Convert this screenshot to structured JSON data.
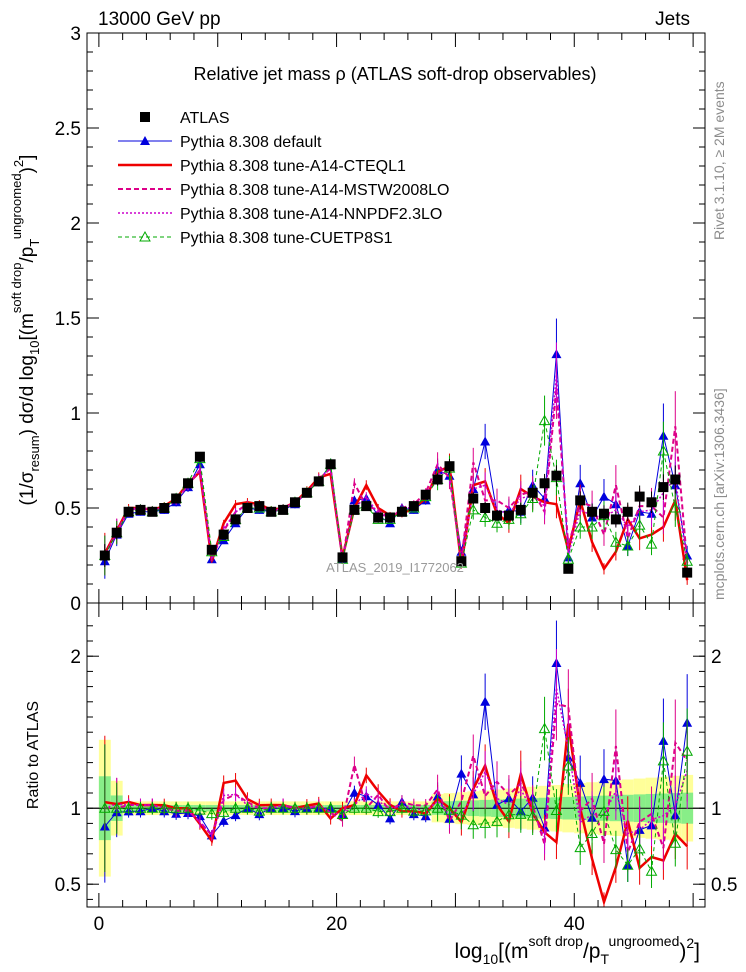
{
  "header": {
    "left": "13000 GeV pp",
    "right": "Jets"
  },
  "side_labels": {
    "rivet": "Rivet 3.1.10, ≥ 2M events",
    "mcplots": "mcplots.cern.ch [arXiv:1306.3436]"
  },
  "watermark": "ATLAS_2019_I1772062",
  "chart_data": [
    {
      "type": "line",
      "title": "Relative jet mass  ρ (ATLAS soft-drop observables)",
      "ylabel": "(1/σ_resum) dσ/d log10[(m^soft drop/p_T^ungroomed)^2]",
      "xlabel": "log10[(m^soft drop/p_T^ungroomed)^2]",
      "xlim": [
        -1,
        51
      ],
      "ylim": [
        0,
        3
      ],
      "yticks": [
        "0",
        "0.5",
        "1",
        "1.5",
        "2",
        "2.5",
        "3"
      ],
      "xticks": [
        "0",
        "20",
        "40"
      ],
      "legend": [
        "ATLAS",
        "Pythia 8.308 default",
        "Pythia 8.308 tune-A14-CTEQL1",
        "Pythia 8.308 tune-A14-MSTW2008LO",
        "Pythia 8.308 tune-A14-NNPDF2.3LO",
        "Pythia 8.308 tune-CUETP8S1"
      ],
      "x": [
        0.5,
        1.5,
        2.5,
        3.5,
        4.5,
        5.5,
        6.5,
        7.5,
        8.5,
        9.5,
        10.5,
        11.5,
        12.5,
        13.5,
        14.5,
        15.5,
        16.5,
        17.5,
        18.5,
        19.5,
        20.5,
        21.5,
        22.5,
        23.5,
        24.5,
        25.5,
        26.5,
        27.5,
        28.5,
        29.5,
        30.5,
        31.5,
        32.5,
        33.5,
        34.5,
        35.5,
        36.5,
        37.5,
        38.5,
        39.5,
        40.5,
        41.5,
        42.5,
        43.5,
        44.5,
        45.5,
        46.5,
        47.5,
        48.5,
        49.5
      ],
      "series": [
        {
          "name": "ATLAS",
          "color": "#000000",
          "values": [
            0.25,
            0.37,
            0.48,
            0.49,
            0.48,
            0.5,
            0.55,
            0.63,
            0.77,
            0.28,
            0.36,
            0.44,
            0.5,
            0.51,
            0.48,
            0.49,
            0.53,
            0.58,
            0.64,
            0.73,
            0.24,
            0.49,
            0.51,
            0.45,
            0.45,
            0.48,
            0.51,
            0.57,
            0.65,
            0.72,
            0.22,
            0.55,
            0.5,
            0.46,
            0.46,
            0.49,
            0.58,
            0.63,
            0.67,
            0.18,
            0.54,
            0.48,
            0.47,
            0.44,
            0.48,
            0.56,
            0.53,
            0.61,
            0.65,
            0.16
          ]
        },
        {
          "name": "Pythia 8.308 default",
          "color": "#0000dd",
          "values": [
            0.22,
            0.36,
            0.47,
            0.48,
            0.48,
            0.49,
            0.53,
            0.61,
            0.73,
            0.23,
            0.33,
            0.42,
            0.5,
            0.49,
            0.48,
            0.49,
            0.52,
            0.58,
            0.64,
            0.73,
            0.23,
            0.54,
            0.55,
            0.46,
            0.42,
            0.5,
            0.49,
            0.54,
            0.7,
            0.67,
            0.27,
            0.6,
            0.85,
            0.47,
            0.49,
            0.48,
            0.62,
            0.55,
            1.31,
            0.24,
            0.63,
            0.45,
            0.56,
            0.52,
            0.3,
            0.48,
            0.47,
            0.88,
            0.62,
            0.25
          ]
        },
        {
          "name": "Pythia 8.308 tune-A14-CTEQL1",
          "color": "#ee0000",
          "values": [
            0.26,
            0.38,
            0.5,
            0.5,
            0.49,
            0.51,
            0.55,
            0.63,
            0.69,
            0.22,
            0.42,
            0.52,
            0.53,
            0.52,
            0.49,
            0.5,
            0.53,
            0.59,
            0.66,
            0.68,
            0.24,
            0.5,
            0.62,
            0.5,
            0.46,
            0.47,
            0.5,
            0.55,
            0.69,
            0.72,
            0.2,
            0.62,
            0.64,
            0.47,
            0.42,
            0.6,
            0.56,
            0.53,
            0.52,
            0.28,
            0.54,
            0.32,
            0.18,
            0.27,
            0.44,
            0.34,
            0.36,
            0.4,
            0.54,
            0.12
          ]
        },
        {
          "name": "Pythia 8.308 tune-A14-MSTW2008LO",
          "color": "#dd0088",
          "values": [
            0.25,
            0.37,
            0.49,
            0.5,
            0.49,
            0.5,
            0.54,
            0.62,
            0.7,
            0.23,
            0.38,
            0.48,
            0.52,
            0.51,
            0.48,
            0.5,
            0.53,
            0.58,
            0.65,
            0.71,
            0.22,
            0.63,
            0.51,
            0.49,
            0.44,
            0.5,
            0.52,
            0.58,
            0.73,
            0.66,
            0.23,
            0.74,
            0.54,
            0.54,
            0.5,
            0.57,
            0.59,
            0.48,
            1.13,
            0.3,
            0.53,
            0.51,
            0.36,
            0.62,
            0.34,
            0.51,
            0.51,
            0.45,
            0.93,
            0.21
          ]
        },
        {
          "name": "Pythia 8.308 tune-A14-NNPDF2.3LO",
          "color": "#cc00cc",
          "values": [
            0.25,
            0.38,
            0.49,
            0.5,
            0.49,
            0.5,
            0.54,
            0.62,
            0.7,
            0.23,
            0.39,
            0.48,
            0.51,
            0.51,
            0.48,
            0.5,
            0.53,
            0.58,
            0.65,
            0.71,
            0.23,
            0.5,
            0.56,
            0.47,
            0.45,
            0.49,
            0.51,
            0.56,
            0.68,
            0.69,
            0.21,
            0.6,
            0.62,
            0.49,
            0.47,
            0.55,
            0.57,
            0.51,
            1.2,
            0.25,
            0.49,
            0.46,
            0.45,
            0.49,
            0.4,
            0.48,
            0.49,
            0.58,
            0.66,
            0.2
          ]
        },
        {
          "name": "Pythia 8.308 tune-CUETP8S1",
          "color": "#00aa00",
          "values": [
            0.25,
            0.37,
            0.48,
            0.49,
            0.48,
            0.5,
            0.55,
            0.63,
            0.76,
            0.27,
            0.35,
            0.44,
            0.5,
            0.5,
            0.48,
            0.49,
            0.53,
            0.58,
            0.64,
            0.73,
            0.23,
            0.49,
            0.51,
            0.44,
            0.44,
            0.48,
            0.5,
            0.56,
            0.65,
            0.71,
            0.21,
            0.49,
            0.45,
            0.42,
            0.44,
            0.47,
            0.55,
            0.96,
            0.66,
            0.23,
            0.4,
            0.4,
            0.46,
            0.32,
            0.3,
            0.41,
            0.31,
            0.8,
            0.5,
            0.22
          ]
        }
      ]
    },
    {
      "type": "line",
      "ylabel": "Ratio to ATLAS",
      "ylim": [
        0.35,
        2.35
      ],
      "yticks": [
        "0.5",
        "1",
        "2"
      ],
      "band_levels": {
        "green": [
          0.0,
          0.0,
          0.0,
          0.0,
          0.0,
          0.0,
          0.0,
          0.0,
          0.0,
          0.0,
          0.0,
          0.0,
          0.0,
          0.0,
          0.0,
          0.0,
          0.0,
          0.0,
          0.0,
          0.0,
          0.0,
          0.0,
          0.0,
          0.0,
          0.0,
          0.0,
          0.0,
          0.0,
          0.0,
          0.0,
          0.0,
          0.0,
          0.0,
          0.0,
          0.0,
          0.0,
          0.0,
          0.0,
          0.0,
          0.0,
          0.0,
          0.0,
          0.0,
          0.0,
          0.0,
          0.0,
          0.0,
          0.0,
          0.0,
          0.0
        ]
      }
    }
  ]
}
